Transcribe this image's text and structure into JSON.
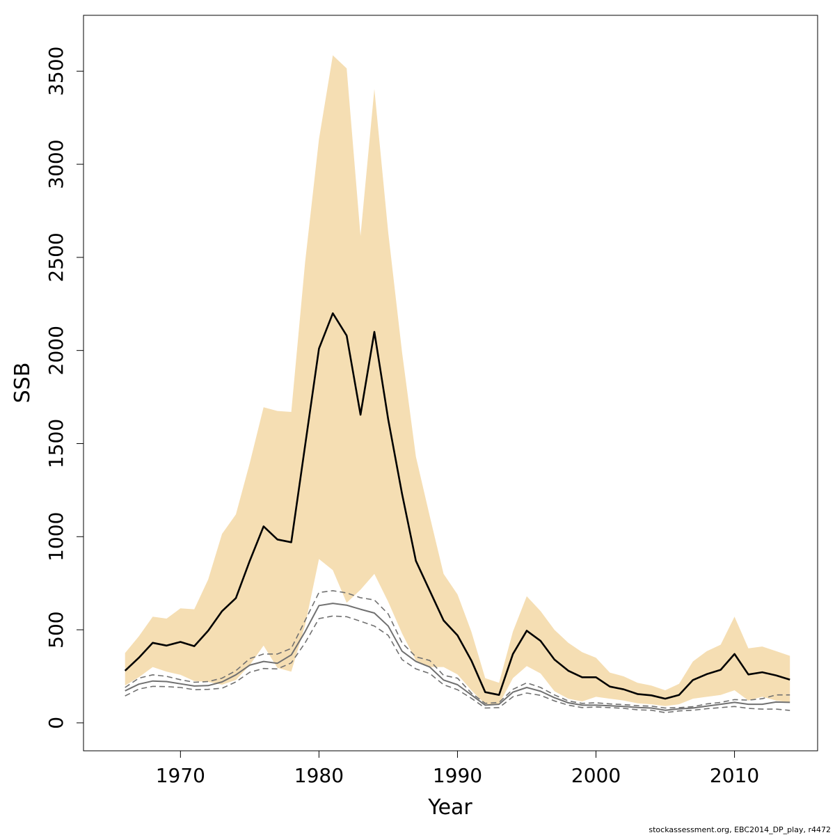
{
  "chart_data": {
    "type": "line",
    "title": "",
    "xlabel": "Year",
    "ylabel": "SSB",
    "xlim": [
      1963,
      2016
    ],
    "ylim": [
      -150,
      3800
    ],
    "x_ticks": [
      1970,
      1980,
      1990,
      2000,
      2010
    ],
    "y_ticks": [
      0,
      500,
      1000,
      1500,
      2000,
      2500,
      3000,
      3500
    ],
    "grid": false,
    "legend": "none",
    "footer": "stockassessment.org, EBC2014_DP_play, r4472",
    "colors": {
      "band": "#f5deb3",
      "median": "#000000",
      "reference": "#707070"
    },
    "x": [
      1966,
      1967,
      1968,
      1969,
      1970,
      1971,
      1972,
      1973,
      1974,
      1975,
      1976,
      1977,
      1978,
      1979,
      1980,
      1981,
      1982,
      1983,
      1984,
      1985,
      1986,
      1987,
      1988,
      1989,
      1990,
      1991,
      1992,
      1993,
      1994,
      1995,
      1996,
      1997,
      1998,
      1999,
      2000,
      2001,
      2002,
      2003,
      2004,
      2005,
      2006,
      2007,
      2008,
      2009,
      2010,
      2011,
      2012,
      2013,
      2014
    ],
    "series": [
      {
        "role": "estimate",
        "values": [
          280,
          350,
          430,
          415,
          435,
          412,
          495,
          600,
          670,
          870,
          1055,
          985,
          970,
          1490,
          2010,
          2200,
          2080,
          1655,
          2100,
          1630,
          1230,
          870,
          710,
          550,
          470,
          335,
          165,
          150,
          370,
          495,
          440,
          340,
          280,
          245,
          245,
          195,
          180,
          155,
          148,
          130,
          150,
          230,
          262,
          285,
          370,
          260,
          272,
          255,
          232
        ]
      },
      {
        "role": "band_upper",
        "values": [
          375,
          465,
          570,
          560,
          615,
          610,
          770,
          1015,
          1120,
          1395,
          1695,
          1675,
          1670,
          2475,
          3135,
          3585,
          3515,
          2615,
          3405,
          2635,
          1990,
          1430,
          1110,
          800,
          690,
          490,
          240,
          215,
          490,
          680,
          600,
          500,
          430,
          380,
          350,
          270,
          250,
          215,
          200,
          175,
          210,
          330,
          385,
          420,
          570,
          400,
          410,
          385,
          360
        ]
      },
      {
        "role": "band_lower",
        "values": [
          200,
          245,
          300,
          275,
          258,
          225,
          220,
          205,
          230,
          310,
          415,
          295,
          275,
          525,
          880,
          820,
          645,
          715,
          800,
          650,
          480,
          335,
          300,
          300,
          260,
          175,
          100,
          100,
          240,
          305,
          265,
          170,
          130,
          115,
          140,
          130,
          120,
          105,
          100,
          90,
          100,
          130,
          140,
          150,
          175,
          120,
          140,
          120,
          110
        ]
      },
      {
        "role": "reference",
        "values": [
          172,
          208,
          225,
          222,
          210,
          198,
          200,
          220,
          258,
          310,
          330,
          320,
          365,
          490,
          630,
          642,
          632,
          610,
          590,
          520,
          385,
          330,
          300,
          230,
          205,
          150,
          95,
          100,
          165,
          190,
          170,
          135,
          108,
          95,
          95,
          92,
          88,
          83,
          80,
          68,
          75,
          80,
          90,
          100,
          110,
          100,
          100,
          112,
          110
        ]
      },
      {
        "role": "reference_upper",
        "values": [
          190,
          240,
          258,
          250,
          232,
          218,
          222,
          240,
          280,
          345,
          370,
          370,
          400,
          550,
          700,
          710,
          698,
          672,
          660,
          585,
          430,
          355,
          335,
          255,
          240,
          160,
          105,
          110,
          180,
          215,
          190,
          150,
          118,
          105,
          108,
          102,
          98,
          92,
          90,
          80,
          82,
          87,
          102,
          110,
          125,
          122,
          130,
          150,
          150
        ]
      },
      {
        "role": "reference_lower",
        "values": [
          145,
          182,
          196,
          195,
          190,
          178,
          180,
          186,
          220,
          272,
          292,
          290,
          322,
          430,
          560,
          574,
          570,
          546,
          520,
          470,
          340,
          290,
          265,
          205,
          178,
          132,
          80,
          82,
          140,
          160,
          148,
          118,
          95,
          82,
          85,
          82,
          78,
          70,
          68,
          55,
          64,
          68,
          76,
          82,
          88,
          78,
          74,
          74,
          67
        ]
      }
    ]
  }
}
